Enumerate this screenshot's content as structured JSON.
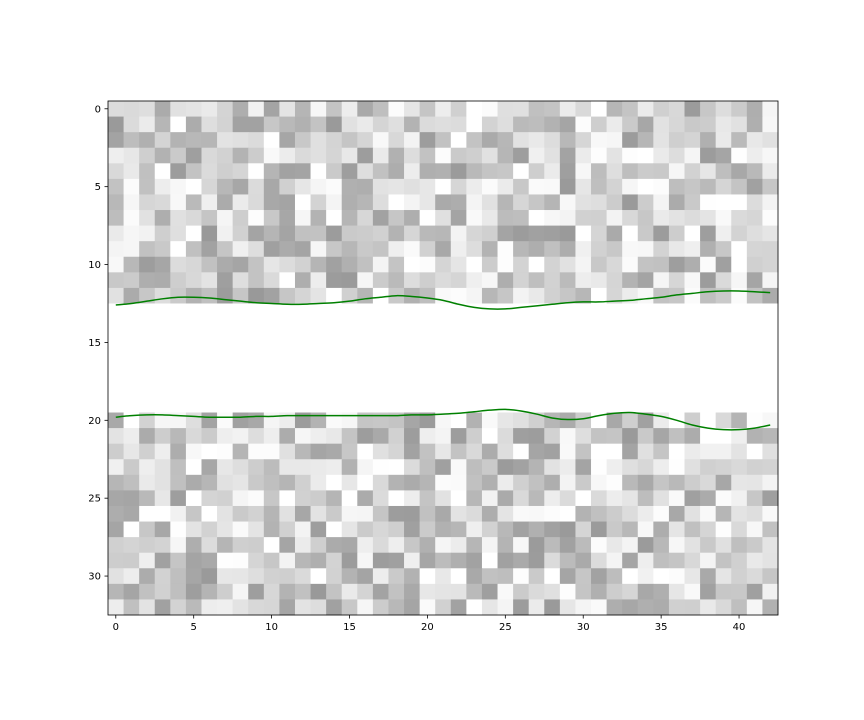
{
  "chart_data": {
    "type": "heatmap",
    "title": "",
    "xlabel": "",
    "ylabel": "",
    "colormap": "gray",
    "value_range": [
      0,
      1
    ],
    "xlim": [
      -0.5,
      42.5
    ],
    "ylim": [
      32.5,
      -0.5
    ],
    "y_axis_inverted": true,
    "grid": false,
    "x_ticks": [
      0,
      5,
      10,
      15,
      20,
      25,
      30,
      35,
      40
    ],
    "x_tick_labels": [
      "0",
      "5",
      "10",
      "15",
      "20",
      "25",
      "30",
      "35",
      "40"
    ],
    "y_ticks": [
      0,
      5,
      10,
      15,
      20,
      25,
      30
    ],
    "y_tick_labels": [
      "0",
      "5",
      "10",
      "15",
      "20",
      "25",
      "30"
    ],
    "grid_size": {
      "rows": 33,
      "cols": 43
    },
    "blank_band_rows": [
      13,
      19
    ],
    "noise_brightness_range": [
      0.6,
      1.0
    ],
    "series": [
      {
        "color": "#008000",
        "x": [
          0,
          1,
          2,
          3,
          4,
          5,
          6,
          7,
          8,
          9,
          10,
          11,
          12,
          13,
          14,
          15,
          16,
          17,
          18,
          19,
          20,
          21,
          22,
          23,
          24,
          25,
          26,
          27,
          28,
          29,
          30,
          31,
          32,
          33,
          34,
          35,
          36,
          37,
          38,
          39,
          40,
          41,
          42
        ],
        "y": [
          12.6,
          12.5,
          12.35,
          12.2,
          12.1,
          12.1,
          12.15,
          12.25,
          12.35,
          12.45,
          12.5,
          12.55,
          12.55,
          12.5,
          12.45,
          12.35,
          12.2,
          12.1,
          12.0,
          12.05,
          12.15,
          12.3,
          12.55,
          12.75,
          12.85,
          12.85,
          12.75,
          12.65,
          12.55,
          12.45,
          12.4,
          12.4,
          12.35,
          12.3,
          12.2,
          12.1,
          11.95,
          11.85,
          11.75,
          11.7,
          11.7,
          11.75,
          11.8
        ]
      },
      {
        "color": "#008000",
        "x": [
          0,
          1,
          2,
          3,
          4,
          5,
          6,
          7,
          8,
          9,
          10,
          11,
          12,
          13,
          14,
          15,
          16,
          17,
          18,
          19,
          20,
          21,
          22,
          23,
          24,
          25,
          26,
          27,
          28,
          29,
          30,
          31,
          32,
          33,
          34,
          35,
          36,
          37,
          38,
          39,
          40,
          41,
          42
        ],
        "y": [
          19.8,
          19.7,
          19.65,
          19.65,
          19.7,
          19.75,
          19.8,
          19.8,
          19.8,
          19.75,
          19.75,
          19.7,
          19.7,
          19.7,
          19.7,
          19.7,
          19.7,
          19.7,
          19.7,
          19.65,
          19.65,
          19.6,
          19.55,
          19.45,
          19.35,
          19.3,
          19.4,
          19.6,
          19.85,
          19.95,
          19.9,
          19.7,
          19.55,
          19.5,
          19.6,
          19.75,
          20.0,
          20.3,
          20.5,
          20.6,
          20.6,
          20.5,
          20.3
        ]
      }
    ]
  }
}
